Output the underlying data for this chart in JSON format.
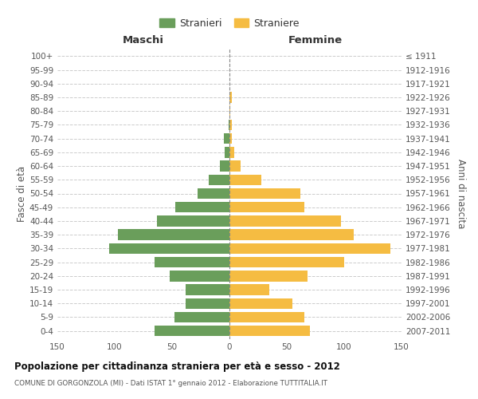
{
  "age_groups": [
    "0-4",
    "5-9",
    "10-14",
    "15-19",
    "20-24",
    "25-29",
    "30-34",
    "35-39",
    "40-44",
    "45-49",
    "50-54",
    "55-59",
    "60-64",
    "65-69",
    "70-74",
    "75-79",
    "80-84",
    "85-89",
    "90-94",
    "95-99",
    "100+"
  ],
  "birth_years": [
    "2007-2011",
    "2002-2006",
    "1997-2001",
    "1992-1996",
    "1987-1991",
    "1982-1986",
    "1977-1981",
    "1972-1976",
    "1967-1971",
    "1962-1966",
    "1957-1961",
    "1952-1956",
    "1947-1951",
    "1942-1946",
    "1937-1941",
    "1932-1936",
    "1927-1931",
    "1922-1926",
    "1917-1921",
    "1912-1916",
    "≤ 1911"
  ],
  "maschi": [
    65,
    48,
    38,
    38,
    52,
    65,
    105,
    97,
    63,
    47,
    28,
    18,
    8,
    4,
    5,
    1,
    0,
    0,
    0,
    0,
    0
  ],
  "femmine": [
    70,
    65,
    55,
    35,
    68,
    100,
    140,
    108,
    97,
    65,
    62,
    28,
    10,
    4,
    2,
    2,
    1,
    2,
    0,
    0,
    0
  ],
  "color_maschi": "#6a9e5b",
  "color_femmine": "#f5bc42",
  "title": "Popolazione per cittadinanza straniera per età e sesso - 2012",
  "subtitle": "COMUNE DI GORGONZOLA (MI) - Dati ISTAT 1° gennaio 2012 - Elaborazione TUTTITALIA.IT",
  "ylabel_left": "Fasce di età",
  "ylabel_right": "Anni di nascita",
  "xlabel_left": "Maschi",
  "xlabel_right": "Femmine",
  "legend_maschi": "Stranieri",
  "legend_femmine": "Straniere",
  "xlim": 150,
  "background_color": "#ffffff",
  "grid_color": "#cccccc"
}
